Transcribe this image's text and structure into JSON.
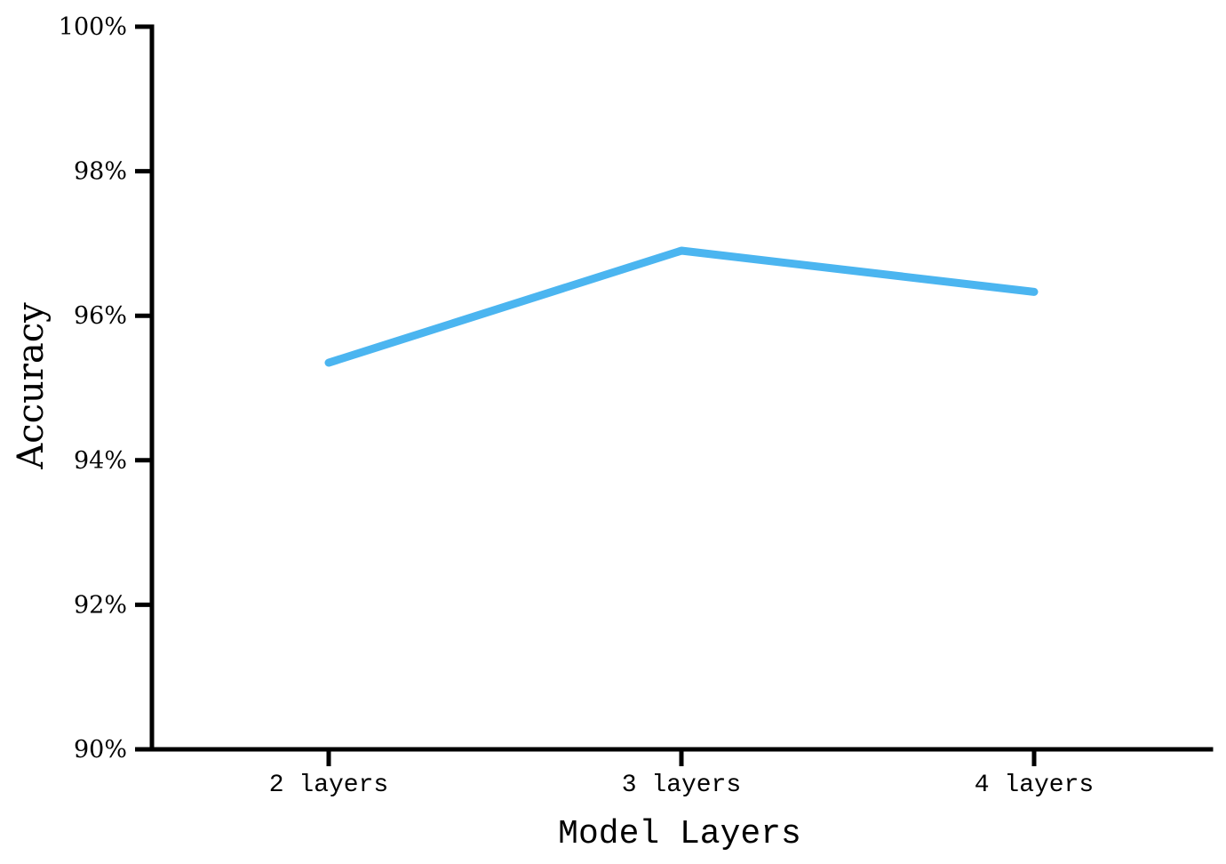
{
  "chart_data": {
    "type": "line",
    "categories": [
      "2 layers",
      "3 layers",
      "4 layers"
    ],
    "series": [
      {
        "name": "Accuracy",
        "values": [
          95.35,
          96.9,
          96.33
        ]
      }
    ],
    "title": "",
    "xlabel": "Model Layers",
    "ylabel": "Accuracy",
    "ylim": [
      90,
      100
    ],
    "yticks": [
      90,
      92,
      94,
      96,
      98,
      100
    ],
    "ytick_suffix": "%",
    "grid": false,
    "legend": "none",
    "colors": {
      "line": "#4BB5F0",
      "axis": "#000000",
      "background": "#ffffff"
    }
  }
}
